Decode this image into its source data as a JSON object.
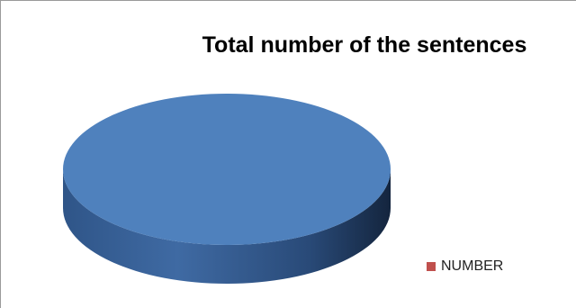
{
  "chart_data": {
    "type": "pie",
    "title": "Total number of the sentences",
    "slices": [
      {
        "label": "NUMBER",
        "value": 1,
        "color": "#c0504d"
      }
    ],
    "colors": {
      "pie_top": "#4f81bd",
      "pie_side_dark": "#1e3556",
      "pie_side_light": "#3f6aa3"
    },
    "legend": {
      "position": "right"
    }
  }
}
